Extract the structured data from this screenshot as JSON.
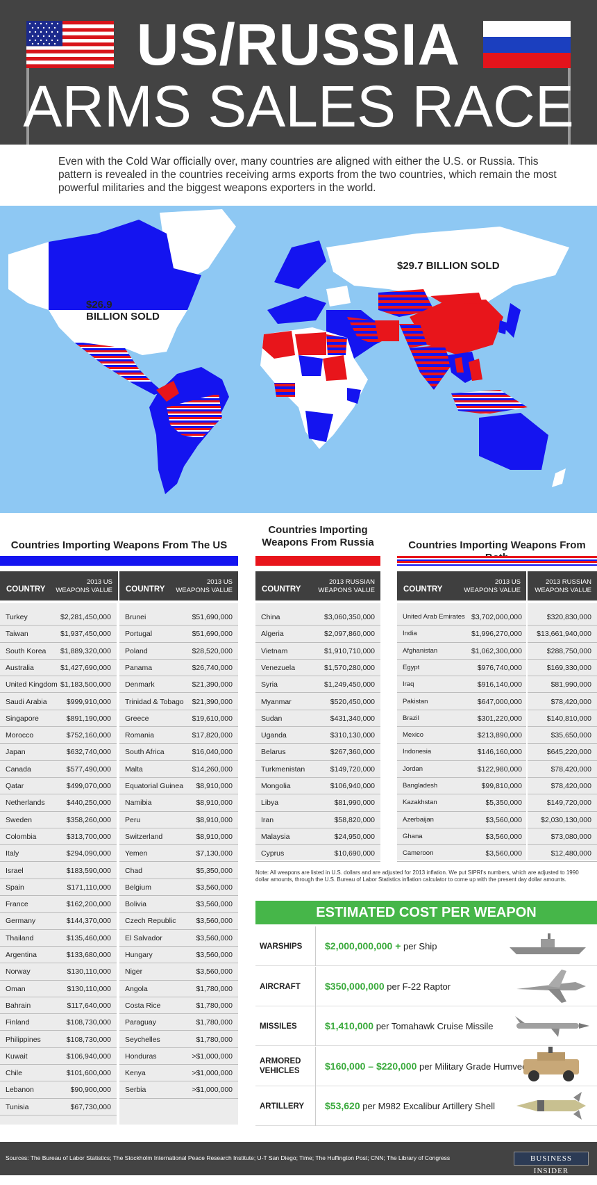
{
  "header": {
    "title_line1": "US/RUSSIA",
    "title_line2": "ARMS SALES RACE"
  },
  "intro": "Even with the Cold War officially over, many countries are aligned with either the U.S. or Russia. This pattern is revealed in the countries receiving arms exports from the two countries, which remain the most powerful militaries and the biggest weapons exporters in the world.",
  "map": {
    "us_label": "$26.9\nBILLION SOLD",
    "russia_label": "$29.7 BILLION SOLD",
    "colors": {
      "us": "#1414f0",
      "russia": "#e8151b",
      "both": "striped",
      "ocean": "#8ec8f3",
      "none": "#ffffff"
    }
  },
  "sections": {
    "us_title": "Countries Importing Weapons From The US",
    "russia_title": "Countries Importing\nWeapons From Russia",
    "both_title": "Countries Importing Weapons From Both"
  },
  "headers": {
    "country": "COUNTRY",
    "us_value": "2013 US\nWEAPONS VALUE",
    "russia_value": "2013 RUSSIAN\nWEAPONS VALUE"
  },
  "us_table_left": [
    [
      "Turkey",
      "$2,281,450,000"
    ],
    [
      "Taiwan",
      "$1,937,450,000"
    ],
    [
      "South Korea",
      "$1,889,320,000"
    ],
    [
      "Australia",
      "$1,427,690,000"
    ],
    [
      "United Kingdom",
      "$1,183,500,000"
    ],
    [
      "Saudi Arabia",
      "$999,910,000"
    ],
    [
      "Singapore",
      "$891,190,000"
    ],
    [
      "Morocco",
      "$752,160,000"
    ],
    [
      "Japan",
      "$632,740,000"
    ],
    [
      "Canada",
      "$577,490,000"
    ],
    [
      "Qatar",
      "$499,070,000"
    ],
    [
      "Netherlands",
      "$440,250,000"
    ],
    [
      "Sweden",
      "$358,260,000"
    ],
    [
      "Colombia",
      "$313,700,000"
    ],
    [
      "Italy",
      "$294,090,000"
    ],
    [
      "Israel",
      "$183,590,000"
    ],
    [
      "Spain",
      "$171,110,000"
    ],
    [
      "France",
      "$162,200,000"
    ],
    [
      "Germany",
      "$144,370,000"
    ],
    [
      "Thailand",
      "$135,460,000"
    ],
    [
      "Argentina",
      "$133,680,000"
    ],
    [
      "Norway",
      "$130,110,000"
    ],
    [
      "Oman",
      "$130,110,000"
    ],
    [
      "Bahrain",
      "$117,640,000"
    ],
    [
      "Finland",
      "$108,730,000"
    ],
    [
      "Philippines",
      "$108,730,000"
    ],
    [
      "Kuwait",
      "$106,940,000"
    ],
    [
      "Chile",
      "$101,600,000"
    ],
    [
      "Lebanon",
      "$90,900,000"
    ],
    [
      "Tunisia",
      "$67,730,000"
    ]
  ],
  "us_table_right": [
    [
      "Brunei",
      "$51,690,000"
    ],
    [
      "Portugal",
      "$51,690,000"
    ],
    [
      "Poland",
      "$28,520,000"
    ],
    [
      "Panama",
      "$26,740,000"
    ],
    [
      "Denmark",
      "$21,390,000"
    ],
    [
      "Trinidad & Tobago",
      "$21,390,000"
    ],
    [
      "Greece",
      "$19,610,000"
    ],
    [
      "Romania",
      "$17,820,000"
    ],
    [
      "South Africa",
      "$16,040,000"
    ],
    [
      "Malta",
      "$14,260,000"
    ],
    [
      "Equatorial Guinea",
      "$8,910,000"
    ],
    [
      "Namibia",
      "$8,910,000"
    ],
    [
      "Peru",
      "$8,910,000"
    ],
    [
      "Switzerland",
      "$8,910,000"
    ],
    [
      "Yemen",
      "$7,130,000"
    ],
    [
      "Chad",
      "$5,350,000"
    ],
    [
      "Belgium",
      "$3,560,000"
    ],
    [
      "Bolivia",
      "$3,560,000"
    ],
    [
      "Czech Republic",
      "$3,560,000"
    ],
    [
      "El Salvador",
      "$3,560,000"
    ],
    [
      "Hungary",
      "$3,560,000"
    ],
    [
      "Niger",
      "$3,560,000"
    ],
    [
      "Angola",
      "$1,780,000"
    ],
    [
      "Costa Rice",
      "$1,780,000"
    ],
    [
      "Paraguay",
      "$1,780,000"
    ],
    [
      "Seychelles",
      "$1,780,000"
    ],
    [
      "Honduras",
      ">$1,000,000"
    ],
    [
      "Kenya",
      ">$1,000,000"
    ],
    [
      "Serbia",
      ">$1,000,000"
    ]
  ],
  "russia_table": [
    [
      "China",
      "$3,060,350,000"
    ],
    [
      "Algeria",
      "$2,097,860,000"
    ],
    [
      "Vietnam",
      "$1,910,710,000"
    ],
    [
      "Venezuela",
      "$1,570,280,000"
    ],
    [
      "Syria",
      "$1,249,450,000"
    ],
    [
      "Myanmar",
      "$520,450,000"
    ],
    [
      "Sudan",
      "$431,340,000"
    ],
    [
      "Uganda",
      "$310,130,000"
    ],
    [
      "Belarus",
      "$267,360,000"
    ],
    [
      "Turkmenistan",
      "$149,720,000"
    ],
    [
      "Mongolia",
      "$106,940,000"
    ],
    [
      "Libya",
      "$81,990,000"
    ],
    [
      "Iran",
      "$58,820,000"
    ],
    [
      "Malaysia",
      "$24,950,000"
    ],
    [
      "Cyprus",
      "$10,690,000"
    ]
  ],
  "both_table": [
    [
      "United Arab Emirates",
      "$3,702,000,000",
      "$320,830,000"
    ],
    [
      "India",
      "$1,996,270,000",
      "$13,661,940,000"
    ],
    [
      "Afghanistan",
      "$1,062,300,000",
      "$288,750,000"
    ],
    [
      "Egypt",
      "$976,740,000",
      "$169,330,000"
    ],
    [
      "Iraq",
      "$916,140,000",
      "$81,990,000"
    ],
    [
      "Pakistan",
      "$647,000,000",
      "$78,420,000"
    ],
    [
      "Brazil",
      "$301,220,000",
      "$140,810,000"
    ],
    [
      "Mexico",
      "$213,890,000",
      "$35,650,000"
    ],
    [
      "Indonesia",
      "$146,160,000",
      "$645,220,000"
    ],
    [
      "Jordan",
      "$122,980,000",
      "$78,420,000"
    ],
    [
      "Bangladesh",
      "$99,810,000",
      "$78,420,000"
    ],
    [
      "Kazakhstan",
      "$5,350,000",
      "$149,720,000"
    ],
    [
      "Azerbaijan",
      "$3,560,000",
      "$2,030,130,000"
    ],
    [
      "Ghana",
      "$3,560,000",
      "$73,080,000"
    ],
    [
      "Cameroon",
      "$3,560,000",
      "$12,480,000"
    ]
  ],
  "note": "Note: All weapons are listed in U.S. dollars and are adjusted for 2013 inflation. We put SIPRI's numbers, which are adjusted to 1990 dollar amounts, through the U.S. Bureau of Labor Statistics inflation calculator to come up with the present day dollar amounts.",
  "cost": {
    "title": "ESTIMATED COST PER WEAPON",
    "rows": [
      {
        "category": "WARSHIPS",
        "amount": "$2,000,000,000 +",
        "per": " per Ship",
        "icon": "warship-icon"
      },
      {
        "category": "AIRCRAFT",
        "amount": "$350,000,000",
        "per": " per F-22 Raptor",
        "icon": "fighter-jet-icon"
      },
      {
        "category": "MISSILES",
        "amount": "$1,410,000",
        "per": " per Tomahawk Cruise Missile",
        "icon": "missile-icon"
      },
      {
        "category": "ARMORED\nVEHICLES",
        "amount": "$160,000 – $220,000",
        "per": " per Military Grade Humvee",
        "icon": "humvee-icon"
      },
      {
        "category": "ARTILLERY",
        "amount": "$53,620",
        "per": " per M982 Excalibur Artillery Shell",
        "icon": "artillery-shell-icon"
      }
    ]
  },
  "footer": {
    "sources": "Sources: The Bureau of Labor Statistics; The Stockholm International Peace Research Institute; U-T San Diego; Time; The Huffington Post; CNN; The Library of Congress",
    "brand": "BUSINESS INSIDER"
  }
}
